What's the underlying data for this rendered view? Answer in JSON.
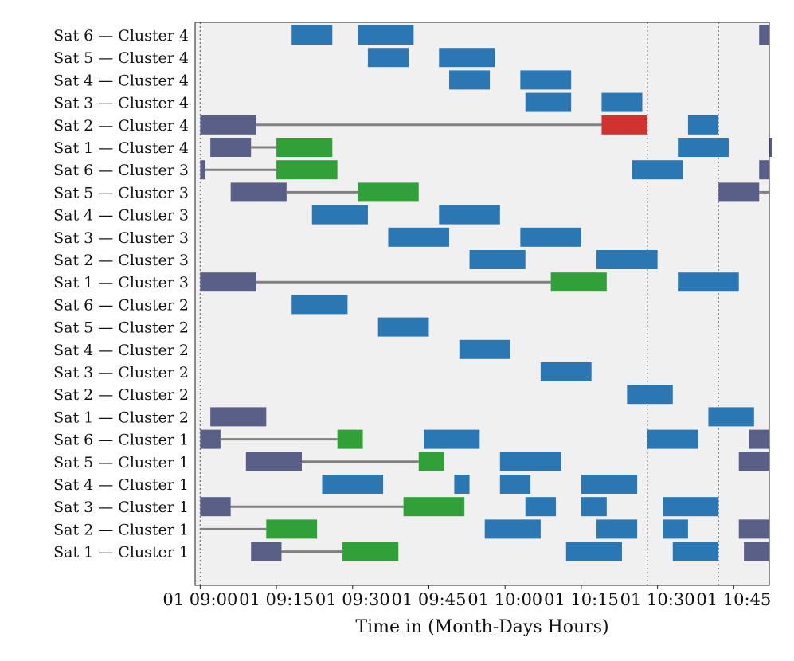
{
  "chart_data": {
    "type": "gantt",
    "title": "",
    "xlabel": "Time in (Month-Days Hours)",
    "ylabel": "",
    "grid": false,
    "xlim": [
      "08:59",
      "10:52"
    ],
    "x_ticks": [
      {
        "t": "09:00",
        "label": "01 09:00"
      },
      {
        "t": "09:15",
        "label": "01 09:15"
      },
      {
        "t": "09:30",
        "label": "01 09:30"
      },
      {
        "t": "09:45",
        "label": "01 09:45"
      },
      {
        "t": "10:00",
        "label": "01 10:00"
      },
      {
        "t": "10:15",
        "label": "01 10:15"
      },
      {
        "t": "10:30",
        "label": "01 10:30"
      },
      {
        "t": "10:45",
        "label": "01 10:45"
      }
    ],
    "vlines": [
      "09:00",
      "10:28",
      "10:42"
    ],
    "colors": {
      "blue": "#2b77b4",
      "slate": "#5a5f87",
      "green": "#31a039",
      "red": "#d0322f",
      "line": "#808080",
      "plot_bg": "#f0f0f0",
      "vline": "#777777"
    },
    "rows": [
      {
        "label": "Sat 6 — Cluster 4",
        "bars": [
          {
            "start": "09:18",
            "end": "09:26",
            "c": "blue"
          },
          {
            "start": "09:31",
            "end": "09:42",
            "c": "blue"
          },
          {
            "start": "10:50",
            "end": "10:52",
            "c": "slate"
          }
        ],
        "lines": []
      },
      {
        "label": "Sat 5 — Cluster 4",
        "bars": [
          {
            "start": "09:33",
            "end": "09:41",
            "c": "blue"
          },
          {
            "start": "09:47",
            "end": "09:58",
            "c": "blue"
          }
        ],
        "lines": []
      },
      {
        "label": "Sat 4 — Cluster 4",
        "bars": [
          {
            "start": "09:49",
            "end": "09:57",
            "c": "blue"
          },
          {
            "start": "10:03",
            "end": "10:13",
            "c": "blue"
          }
        ],
        "lines": []
      },
      {
        "label": "Sat 3 — Cluster 4",
        "bars": [
          {
            "start": "10:04",
            "end": "10:13",
            "c": "blue"
          },
          {
            "start": "10:19",
            "end": "10:27",
            "c": "blue"
          }
        ],
        "lines": []
      },
      {
        "label": "Sat 2 — Cluster 4",
        "bars": [
          {
            "start": "09:00",
            "end": "09:11",
            "c": "slate"
          },
          {
            "start": "10:19",
            "end": "10:28",
            "c": "red"
          },
          {
            "start": "10:36",
            "end": "10:42",
            "c": "blue"
          }
        ],
        "lines": [
          {
            "start": "09:11",
            "end": "10:19"
          }
        ]
      },
      {
        "label": "Sat 1 — Cluster 4",
        "bars": [
          {
            "start": "09:02",
            "end": "09:10",
            "c": "slate"
          },
          {
            "start": "09:15",
            "end": "09:26",
            "c": "green"
          },
          {
            "start": "10:34",
            "end": "10:44",
            "c": "blue"
          },
          {
            "start": "10:52",
            "end": "10:52",
            "c": "slate"
          }
        ],
        "lines": [
          {
            "start": "09:10",
            "end": "09:15"
          }
        ]
      },
      {
        "label": "Sat 6 — Cluster 3",
        "bars": [
          {
            "start": "09:00",
            "end": "09:01",
            "c": "slate"
          },
          {
            "start": "09:15",
            "end": "09:27",
            "c": "green"
          },
          {
            "start": "10:25",
            "end": "10:35",
            "c": "blue"
          },
          {
            "start": "10:50",
            "end": "10:52",
            "c": "slate"
          }
        ],
        "lines": [
          {
            "start": "09:01",
            "end": "09:15"
          }
        ]
      },
      {
        "label": "Sat 5 — Cluster 3",
        "bars": [
          {
            "start": "09:06",
            "end": "09:17",
            "c": "slate"
          },
          {
            "start": "09:31",
            "end": "09:43",
            "c": "green"
          },
          {
            "start": "10:42",
            "end": "10:50",
            "c": "slate"
          }
        ],
        "lines": [
          {
            "start": "09:17",
            "end": "09:31"
          },
          {
            "start": "10:50",
            "end": "10:52"
          }
        ]
      },
      {
        "label": "Sat 4 — Cluster 3",
        "bars": [
          {
            "start": "09:22",
            "end": "09:33",
            "c": "blue"
          },
          {
            "start": "09:47",
            "end": "09:59",
            "c": "blue"
          }
        ],
        "lines": []
      },
      {
        "label": "Sat 3 — Cluster 3",
        "bars": [
          {
            "start": "09:37",
            "end": "09:49",
            "c": "blue"
          },
          {
            "start": "10:03",
            "end": "10:15",
            "c": "blue"
          }
        ],
        "lines": []
      },
      {
        "label": "Sat 2 — Cluster 3",
        "bars": [
          {
            "start": "09:53",
            "end": "10:04",
            "c": "blue"
          },
          {
            "start": "10:18",
            "end": "10:30",
            "c": "blue"
          }
        ],
        "lines": []
      },
      {
        "label": "Sat 1 — Cluster 3",
        "bars": [
          {
            "start": "09:00",
            "end": "09:11",
            "c": "slate"
          },
          {
            "start": "10:09",
            "end": "10:20",
            "c": "green"
          },
          {
            "start": "10:34",
            "end": "10:46",
            "c": "blue"
          }
        ],
        "lines": [
          {
            "start": "09:11",
            "end": "10:09"
          }
        ]
      },
      {
        "label": "Sat 6 — Cluster 2",
        "bars": [
          {
            "start": "09:18",
            "end": "09:29",
            "c": "blue"
          }
        ],
        "lines": []
      },
      {
        "label": "Sat 5 — Cluster 2",
        "bars": [
          {
            "start": "09:35",
            "end": "09:45",
            "c": "blue"
          }
        ],
        "lines": []
      },
      {
        "label": "Sat 4 — Cluster 2",
        "bars": [
          {
            "start": "09:51",
            "end": "10:01",
            "c": "blue"
          }
        ],
        "lines": []
      },
      {
        "label": "Sat 3 — Cluster 2",
        "bars": [
          {
            "start": "10:07",
            "end": "10:17",
            "c": "blue"
          }
        ],
        "lines": []
      },
      {
        "label": "Sat 2 — Cluster 2",
        "bars": [
          {
            "start": "10:24",
            "end": "10:33",
            "c": "blue"
          }
        ],
        "lines": []
      },
      {
        "label": "Sat 1 — Cluster 2",
        "bars": [
          {
            "start": "09:02",
            "end": "09:13",
            "c": "slate"
          },
          {
            "start": "10:40",
            "end": "10:49",
            "c": "blue"
          }
        ],
        "lines": []
      },
      {
        "label": "Sat 6 — Cluster 1",
        "bars": [
          {
            "start": "09:00",
            "end": "09:04",
            "c": "slate"
          },
          {
            "start": "09:27",
            "end": "09:32",
            "c": "green"
          },
          {
            "start": "09:44",
            "end": "09:55",
            "c": "blue"
          },
          {
            "start": "10:28",
            "end": "10:38",
            "c": "blue"
          },
          {
            "start": "10:48",
            "end": "10:52",
            "c": "slate"
          }
        ],
        "lines": [
          {
            "start": "09:04",
            "end": "09:27"
          }
        ]
      },
      {
        "label": "Sat 5 — Cluster 1",
        "bars": [
          {
            "start": "09:09",
            "end": "09:20",
            "c": "slate"
          },
          {
            "start": "09:43",
            "end": "09:48",
            "c": "green"
          },
          {
            "start": "09:59",
            "end": "10:11",
            "c": "blue"
          },
          {
            "start": "10:46",
            "end": "10:52",
            "c": "slate"
          }
        ],
        "lines": [
          {
            "start": "09:20",
            "end": "09:43"
          }
        ]
      },
      {
        "label": "Sat 4 — Cluster 1",
        "bars": [
          {
            "start": "09:24",
            "end": "09:36",
            "c": "blue"
          },
          {
            "start": "09:50",
            "end": "09:53",
            "c": "blue"
          },
          {
            "start": "09:59",
            "end": "10:05",
            "c": "blue"
          },
          {
            "start": "10:15",
            "end": "10:26",
            "c": "blue"
          }
        ],
        "lines": []
      },
      {
        "label": "Sat 3 — Cluster 1",
        "bars": [
          {
            "start": "09:00",
            "end": "09:06",
            "c": "slate"
          },
          {
            "start": "09:40",
            "end": "09:52",
            "c": "green"
          },
          {
            "start": "10:04",
            "end": "10:10",
            "c": "blue"
          },
          {
            "start": "10:15",
            "end": "10:20",
            "c": "blue"
          },
          {
            "start": "10:31",
            "end": "10:42",
            "c": "blue"
          }
        ],
        "lines": [
          {
            "start": "09:06",
            "end": "09:40"
          }
        ]
      },
      {
        "label": "Sat 2 — Cluster 1",
        "bars": [
          {
            "start": "09:13",
            "end": "09:23",
            "c": "green"
          },
          {
            "start": "09:56",
            "end": "10:07",
            "c": "blue"
          },
          {
            "start": "10:18",
            "end": "10:26",
            "c": "blue"
          },
          {
            "start": "10:31",
            "end": "10:36",
            "c": "blue"
          },
          {
            "start": "10:46",
            "end": "10:52",
            "c": "slate"
          }
        ],
        "lines": [
          {
            "start": "09:00",
            "end": "09:13"
          }
        ]
      },
      {
        "label": "Sat 1 — Cluster 1",
        "bars": [
          {
            "start": "09:10",
            "end": "09:16",
            "c": "slate"
          },
          {
            "start": "09:28",
            "end": "09:39",
            "c": "green"
          },
          {
            "start": "10:12",
            "end": "10:23",
            "c": "blue"
          },
          {
            "start": "10:33",
            "end": "10:42",
            "c": "blue"
          },
          {
            "start": "10:47",
            "end": "10:52",
            "c": "slate"
          }
        ],
        "lines": [
          {
            "start": "09:16",
            "end": "09:28"
          }
        ]
      }
    ]
  }
}
